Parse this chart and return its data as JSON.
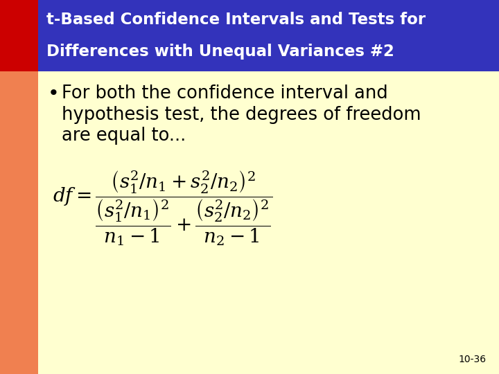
{
  "title_line1": "t-Based Confidence Intervals and Tests for",
  "title_line2": "Differences with Unequal Variances #2",
  "title_bg_color": "#3333bb",
  "title_text_color": "#ffffff",
  "left_bar_color_top": "#cc0000",
  "left_bar_color_bottom": "#f08050",
  "body_bg_color": "#ffffd0",
  "slide_bg_color": "#e0e0e0",
  "bullet_text_line1": "For both the confidence interval and",
  "bullet_text_line2": "hypothesis test, the degrees of freedom",
  "bullet_text_line3": "are equal to...",
  "page_number": "10-36",
  "title_fontsize": 16.5,
  "bullet_fontsize": 18.5,
  "formula_fontsize": 20,
  "page_num_fontsize": 10,
  "left_bar_width": 55,
  "title_bar_height": 103,
  "fig_width": 7.2,
  "fig_height": 5.4,
  "dpi": 100
}
